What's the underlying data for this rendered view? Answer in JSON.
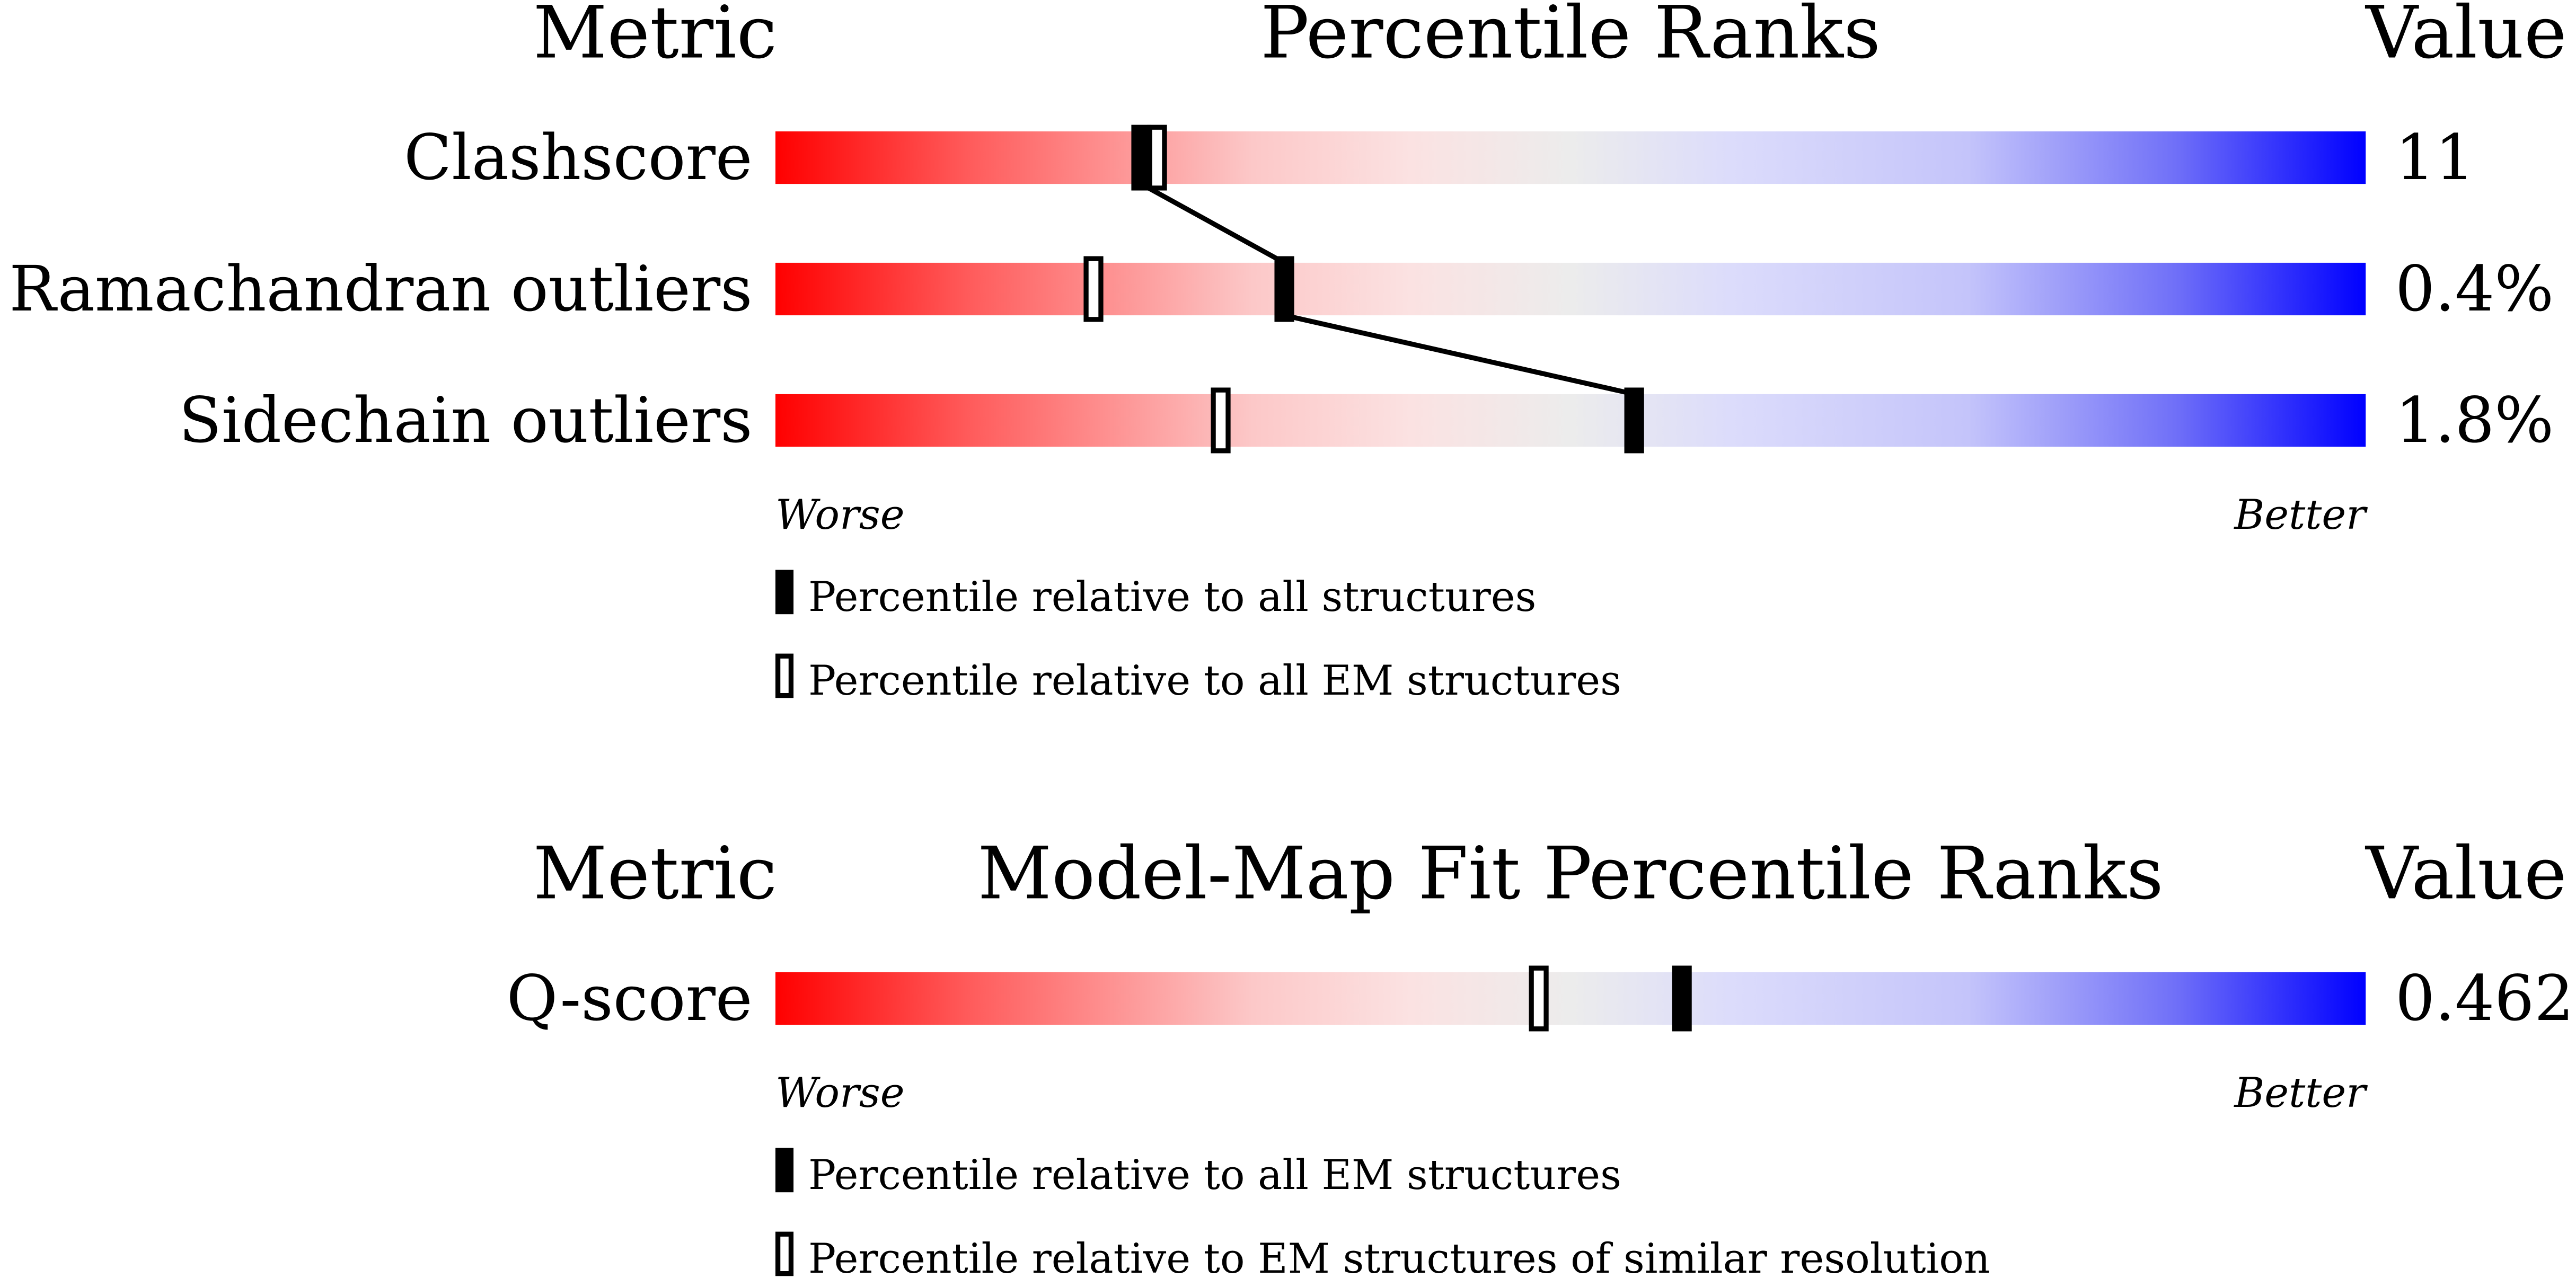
{
  "chart_data": [
    {
      "type": "percentile-slider",
      "title": "Percentile Ranks",
      "metric_header": "Metric",
      "value_header": "Value",
      "categories": [
        "Clashscore",
        "Ramachandran outliers",
        "Sidechain outliers"
      ],
      "values": [
        11,
        0.4,
        1.8
      ],
      "value_labels": [
        "11",
        "0.4%",
        "1.8%"
      ],
      "xlim": [
        0,
        100
      ],
      "worse_label": "Worse",
      "better_label": "Better",
      "series": [
        {
          "name": "Percentile relative to all structures",
          "marker": "filled",
          "connected": true,
          "color": "#000000",
          "values": [
            23,
            32,
            54
          ]
        },
        {
          "name": "Percentile relative to all EM structures",
          "marker": "open",
          "connected": false,
          "color": "#000000",
          "values": [
            24,
            20,
            28
          ]
        }
      ]
    },
    {
      "type": "percentile-slider",
      "title": "Model-Map Fit Percentile Ranks",
      "metric_header": "Metric",
      "value_header": "Value",
      "categories": [
        "Q-score"
      ],
      "values": [
        0.462
      ],
      "value_labels": [
        "0.462"
      ],
      "xlim": [
        0,
        100
      ],
      "worse_label": "Worse",
      "better_label": "Better",
      "series": [
        {
          "name": "Percentile relative to all EM structures",
          "marker": "filled",
          "connected": false,
          "color": "#000000",
          "values": [
            57
          ]
        },
        {
          "name": "Percentile relative to EM structures of similar resolution",
          "marker": "open",
          "connected": false,
          "color": "#000000",
          "values": [
            48
          ]
        }
      ]
    }
  ]
}
